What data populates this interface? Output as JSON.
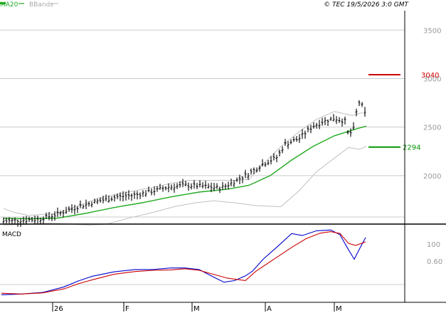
{
  "header": {
    "ma_label": "MA20",
    "bbands_label": "BBands",
    "copyright": "© TEC 19/5/2026 3:0 GMT"
  },
  "colors": {
    "ma": "#22aa22",
    "bands": "#c0c0c0",
    "price": "#000000",
    "macd": "#0000cc",
    "signal": "#cc0000",
    "resistance": "#cc0000",
    "support": "#009900",
    "grid": "#cccccc"
  },
  "macd_panel": {
    "title": "MACD",
    "yticks": [
      "100",
      "0.60"
    ]
  },
  "chart_data": {
    "type": "line",
    "price_panel": {
      "ylim": [
        1500,
        3700
      ],
      "yticks": [
        "3500",
        "3000",
        "2500",
        "2000"
      ],
      "resistance": {
        "label": "3040",
        "value": 3040
      },
      "support": {
        "label": "2294",
        "value": 2294
      },
      "series": [
        {
          "name": "MA20",
          "points": [
            [
              5,
              1560
            ],
            [
              40,
              1555
            ],
            [
              80,
              1560
            ],
            [
              120,
              1610
            ],
            [
              160,
              1670
            ],
            [
              200,
              1720
            ],
            [
              240,
              1780
            ],
            [
              280,
              1830
            ],
            [
              320,
              1860
            ],
            [
              350,
              1900
            ],
            [
              380,
              2000
            ],
            [
              410,
              2160
            ],
            [
              440,
              2300
            ],
            [
              470,
              2410
            ],
            [
              500,
              2480
            ],
            [
              515,
              2510
            ]
          ]
        },
        {
          "name": "BBands upper",
          "points": [
            [
              5,
              1660
            ],
            [
              20,
              1620
            ],
            [
              40,
              1590
            ],
            [
              80,
              1610
            ],
            [
              110,
              1690
            ],
            [
              140,
              1770
            ],
            [
              180,
              1830
            ],
            [
              215,
              1880
            ],
            [
              240,
              1920
            ],
            [
              265,
              1950
            ],
            [
              300,
              1950
            ],
            [
              330,
              1950
            ],
            [
              350,
              1960
            ],
            [
              370,
              2120
            ],
            [
              395,
              2300
            ],
            [
              420,
              2450
            ],
            [
              445,
              2580
            ],
            [
              470,
              2660
            ],
            [
              495,
              2620
            ],
            [
              510,
              2650
            ]
          ]
        },
        {
          "name": "BBands lower",
          "points": [
            [
              5,
              1490
            ],
            [
              40,
              1500
            ],
            [
              70,
              1510
            ],
            [
              100,
              1500
            ],
            [
              125,
              1490
            ],
            [
              150,
              1500
            ],
            [
              180,
              1560
            ],
            [
              215,
              1620
            ],
            [
              245,
              1680
            ],
            [
              275,
              1720
            ],
            [
              300,
              1740
            ],
            [
              330,
              1720
            ],
            [
              360,
              1690
            ],
            [
              395,
              1680
            ],
            [
              420,
              1840
            ],
            [
              445,
              2040
            ],
            [
              470,
              2180
            ],
            [
              490,
              2290
            ],
            [
              505,
              2270
            ],
            [
              515,
              2300
            ]
          ]
        }
      ],
      "price_path": [
        [
          5,
          1530
        ],
        [
          30,
          1540
        ],
        [
          55,
          1550
        ],
        [
          80,
          1600
        ],
        [
          110,
          1680
        ],
        [
          140,
          1740
        ],
        [
          165,
          1780
        ],
        [
          190,
          1800
        ],
        [
          215,
          1840
        ],
        [
          235,
          1880
        ],
        [
          260,
          1900
        ],
        [
          285,
          1890
        ],
        [
          310,
          1870
        ],
        [
          330,
          1940
        ],
        [
          350,
          2020
        ],
        [
          370,
          2120
        ],
        [
          390,
          2190
        ],
        [
          400,
          2320
        ],
        [
          420,
          2380
        ],
        [
          440,
          2510
        ],
        [
          455,
          2560
        ],
        [
          470,
          2590
        ],
        [
          485,
          2560
        ],
        [
          490,
          2410
        ],
        [
          498,
          2490
        ],
        [
          503,
          2760
        ],
        [
          508,
          2740
        ],
        [
          514,
          2620
        ]
      ]
    },
    "macd_panel": {
      "ylim": [
        -60,
        120
      ],
      "series": [
        {
          "name": "MACD",
          "points": [
            [
              2,
              -50
            ],
            [
              30,
              -48
            ],
            [
              60,
              -44
            ],
            [
              90,
              -30
            ],
            [
              110,
              -15
            ],
            [
              130,
              -3
            ],
            [
              160,
              8
            ],
            [
              190,
              14
            ],
            [
              215,
              14
            ],
            [
              240,
              18
            ],
            [
              260,
              18
            ],
            [
              280,
              14
            ],
            [
              300,
              -5
            ],
            [
              315,
              -18
            ],
            [
              330,
              -14
            ],
            [
              345,
              -2
            ],
            [
              355,
              10
            ],
            [
              370,
              40
            ],
            [
              390,
              72
            ],
            [
              410,
              105
            ],
            [
              425,
              100
            ],
            [
              445,
              112
            ],
            [
              465,
              114
            ],
            [
              478,
              102
            ],
            [
              488,
              70
            ],
            [
              498,
              40
            ],
            [
              505,
              65
            ],
            [
              514,
              95
            ]
          ]
        },
        {
          "name": "Signal",
          "points": [
            [
              2,
              -46
            ],
            [
              30,
              -48
            ],
            [
              60,
              -45
            ],
            [
              90,
              -35
            ],
            [
              110,
              -22
            ],
            [
              130,
              -12
            ],
            [
              160,
              2
            ],
            [
              190,
              9
            ],
            [
              215,
              12
            ],
            [
              240,
              13
            ],
            [
              260,
              16
            ],
            [
              280,
              12
            ],
            [
              300,
              2
            ],
            [
              320,
              -8
            ],
            [
              345,
              -14
            ],
            [
              360,
              10
            ],
            [
              385,
              40
            ],
            [
              410,
              70
            ],
            [
              430,
              92
            ],
            [
              450,
              106
            ],
            [
              465,
              110
            ],
            [
              478,
              105
            ],
            [
              490,
              80
            ],
            [
              500,
              75
            ],
            [
              514,
              84
            ]
          ]
        }
      ]
    },
    "x_labels": [
      {
        "label": "26",
        "pos": 75
      },
      {
        "label": "F",
        "pos": 175
      },
      {
        "label": "M",
        "pos": 271
      },
      {
        "label": "A",
        "pos": 374
      },
      {
        "label": "M",
        "pos": 471
      }
    ]
  }
}
